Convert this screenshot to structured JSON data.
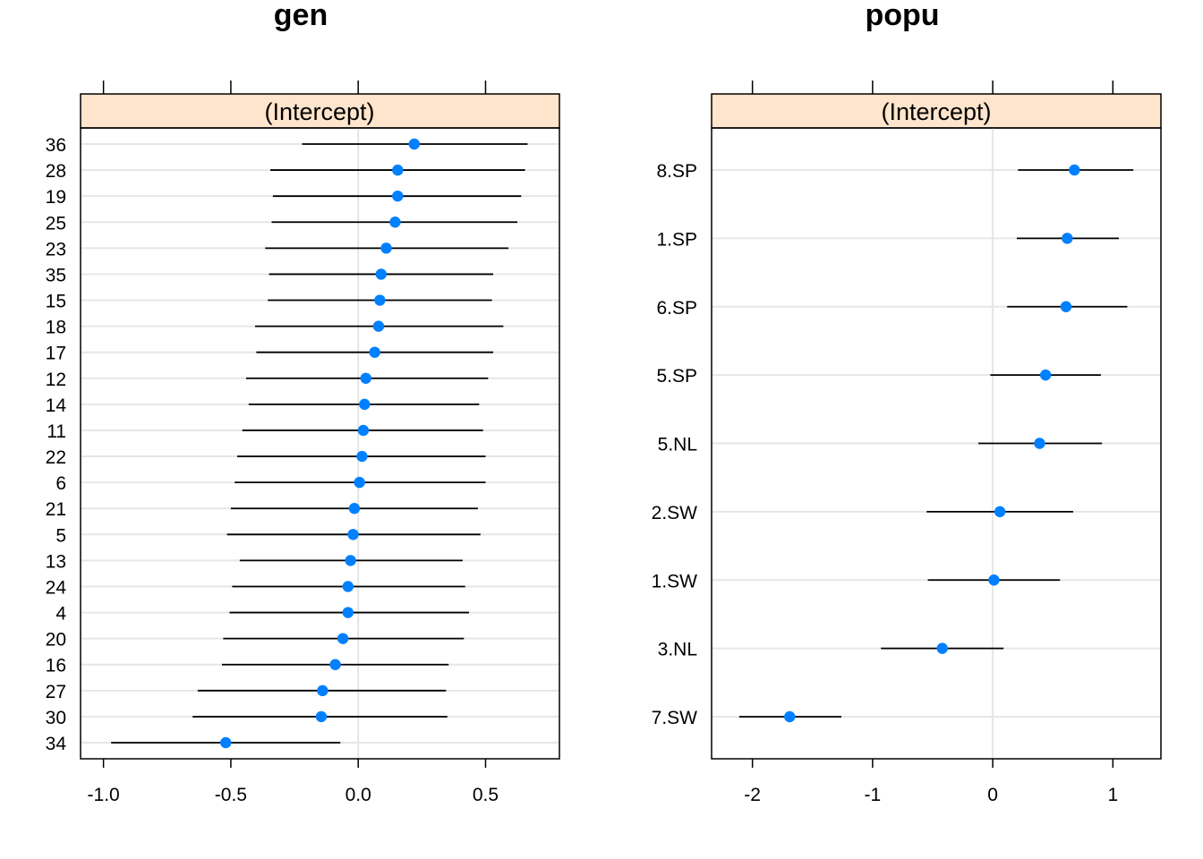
{
  "chart_data": [
    {
      "type": "dotplot",
      "title": "gen",
      "strip_label": "(Intercept)",
      "xlim": [
        -1.09,
        0.79
      ],
      "xticks": [
        -1.0,
        -0.5,
        0.0,
        0.5
      ],
      "xtick_labels": [
        "-1.0",
        "-0.5",
        "0.0",
        "0.5"
      ],
      "point_color": "#0080ff",
      "strip_color": "#ffe5cc",
      "categories": [
        "36",
        "28",
        "19",
        "25",
        "23",
        "35",
        "15",
        "18",
        "17",
        "12",
        "14",
        "11",
        "22",
        "6",
        "21",
        "5",
        "13",
        "24",
        "4",
        "20",
        "16",
        "27",
        "30",
        "34"
      ],
      "values": [
        0.22,
        0.155,
        0.155,
        0.145,
        0.11,
        0.09,
        0.085,
        0.08,
        0.065,
        0.03,
        0.025,
        0.02,
        0.015,
        0.005,
        -0.015,
        -0.02,
        -0.03,
        -0.04,
        -0.04,
        -0.06,
        -0.09,
        -0.14,
        -0.145,
        -0.52
      ],
      "lower": [
        -0.22,
        -0.345,
        -0.335,
        -0.34,
        -0.365,
        -0.35,
        -0.355,
        -0.405,
        -0.4,
        -0.44,
        -0.43,
        -0.455,
        -0.475,
        -0.485,
        -0.5,
        -0.515,
        -0.465,
        -0.495,
        -0.505,
        -0.53,
        -0.535,
        -0.63,
        -0.65,
        -0.97
      ],
      "upper": [
        0.665,
        0.655,
        0.64,
        0.625,
        0.59,
        0.53,
        0.525,
        0.57,
        0.53,
        0.51,
        0.475,
        0.49,
        0.5,
        0.5,
        0.47,
        0.48,
        0.41,
        0.42,
        0.435,
        0.415,
        0.355,
        0.345,
        0.35,
        -0.07
      ]
    },
    {
      "type": "dotplot",
      "title": "popu",
      "strip_label": "(Intercept)",
      "xlim": [
        -2.34,
        1.4
      ],
      "xticks": [
        -2,
        -1,
        0,
        1
      ],
      "xtick_labels": [
        "-2",
        "-1",
        "0",
        "1"
      ],
      "point_color": "#0080ff",
      "strip_color": "#ffe5cc",
      "categories": [
        "8.SP",
        "1.SP",
        "6.SP",
        "5.SP",
        "5.NL",
        "2.SW",
        "1.SW",
        "3.NL",
        "7.SW"
      ],
      "values": [
        0.68,
        0.62,
        0.61,
        0.44,
        0.39,
        0.06,
        0.01,
        -0.42,
        -1.69
      ],
      "lower": [
        0.21,
        0.2,
        0.12,
        -0.02,
        -0.12,
        -0.55,
        -0.54,
        -0.93,
        -2.11
      ],
      "upper": [
        1.17,
        1.05,
        1.12,
        0.9,
        0.91,
        0.67,
        0.56,
        0.09,
        -1.26
      ]
    }
  ]
}
